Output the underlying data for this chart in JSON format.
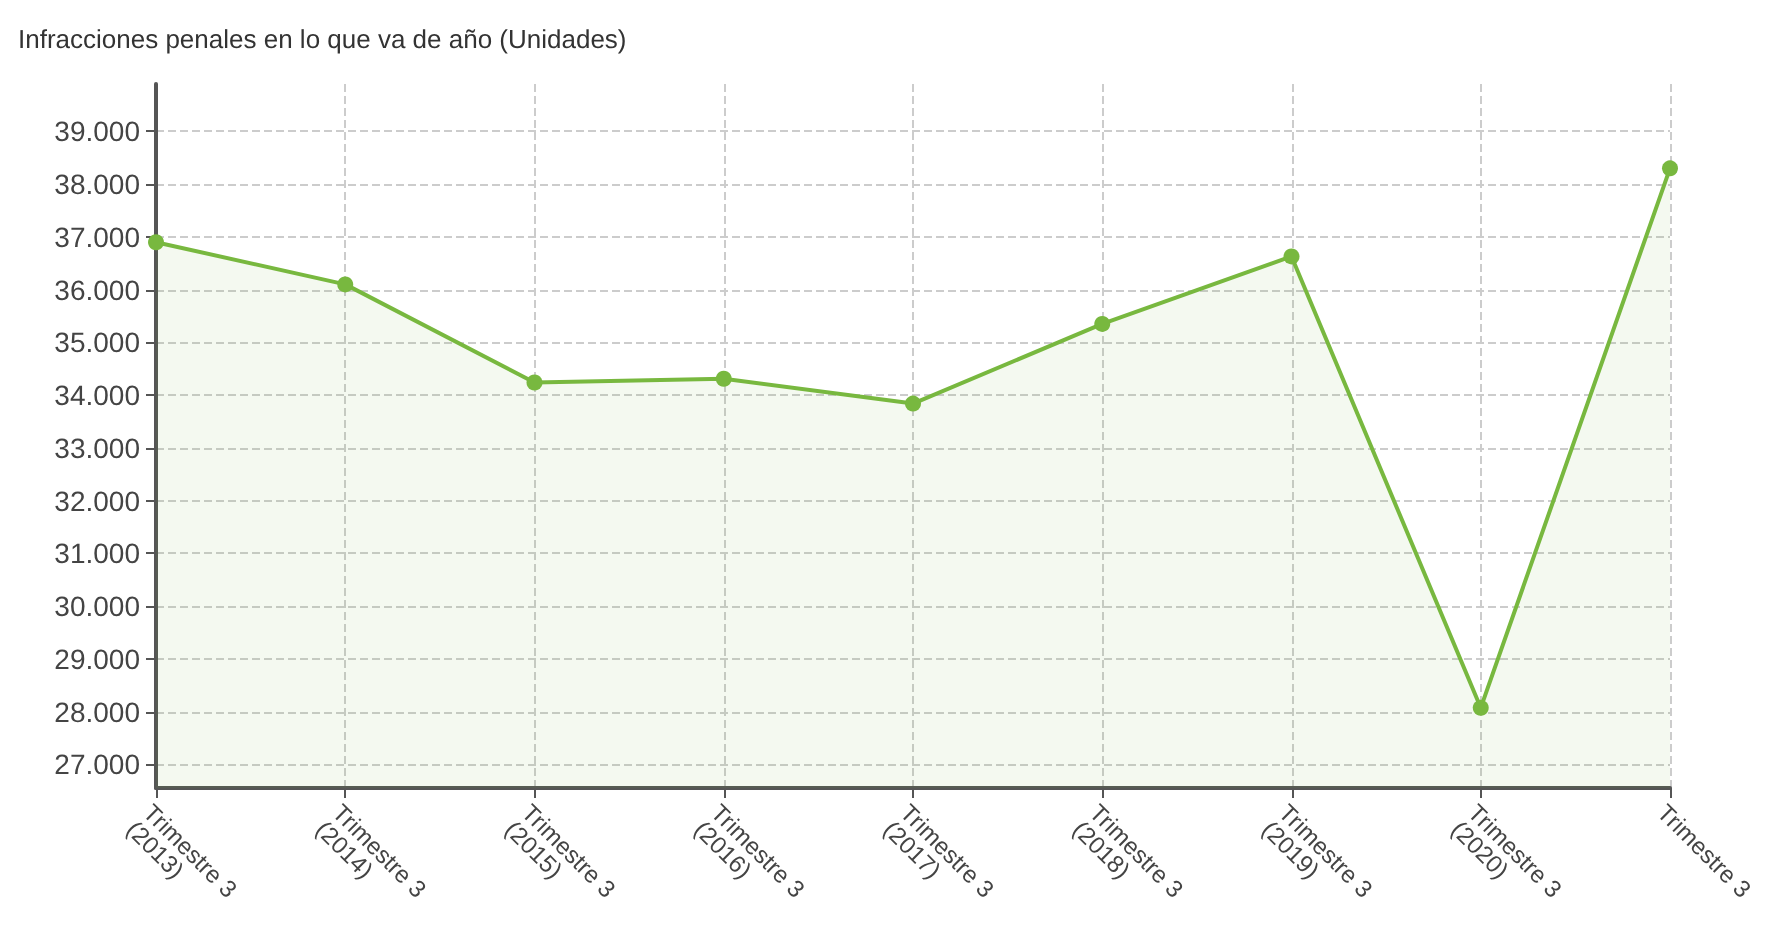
{
  "chart_data": {
    "type": "area",
    "title": "Infracciones penales en lo que va de año (Unidades)",
    "categories": [
      "Trimestre 3\n(2013)",
      "Trimestre 3\n(2014)",
      "Trimestre 3\n(2015)",
      "Trimestre 3\n(2016)",
      "Trimestre 3\n(2017)",
      "Trimestre 3\n(2018)",
      "Trimestre 3\n(2019)",
      "Trimestre 3\n(2020)",
      "Trimestre 3"
    ],
    "series": [
      {
        "color": "#78b83f",
        "values": [
          36900,
          36100,
          34240,
          34310,
          33840,
          35350,
          36630,
          28070,
          38300
        ]
      }
    ],
    "ylim": [
      26550,
      39900
    ],
    "yticks": [
      {
        "value": 27000,
        "label": "27.000"
      },
      {
        "value": 28000,
        "label": "28.000"
      },
      {
        "value": 29000,
        "label": "29.000"
      },
      {
        "value": 30000,
        "label": "30.000"
      },
      {
        "value": 31000,
        "label": "31.000"
      },
      {
        "value": 32000,
        "label": "32.000"
      },
      {
        "value": 33000,
        "label": "33.000"
      },
      {
        "value": 34000,
        "label": "34.000"
      },
      {
        "value": 35000,
        "label": "35.000"
      },
      {
        "value": 36000,
        "label": "36.000"
      },
      {
        "value": 37000,
        "label": "37.000"
      },
      {
        "value": 38000,
        "label": "38.000"
      },
      {
        "value": 39000,
        "label": "39.000"
      }
    ],
    "grid": true,
    "marker": "circle",
    "line_style": "solid"
  }
}
